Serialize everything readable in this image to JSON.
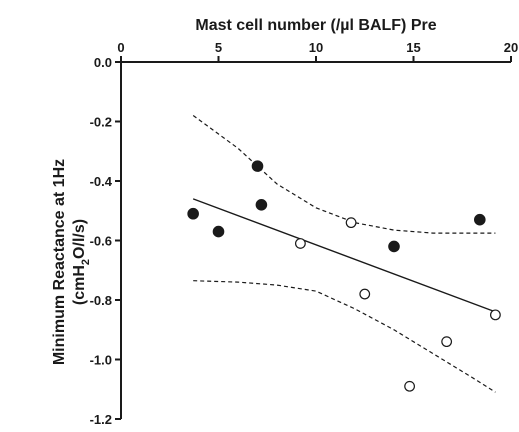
{
  "chart_data": {
    "type": "scatter",
    "title": "",
    "xlabel": "Mast cell number (/µl BALF) Pre",
    "ylabel_line1": "Minimum Reactance at 1Hz",
    "ylabel_line2_parts": [
      "(cmH",
      "2",
      "O/l/s)"
    ],
    "xlim": [
      0,
      20
    ],
    "ylim": [
      -1.2,
      0.0
    ],
    "x_axis_position": "top",
    "grid": false,
    "legend": "none",
    "x_ticks": [
      0,
      5,
      10,
      15,
      20
    ],
    "y_ticks": [
      0.0,
      -0.2,
      -0.4,
      -0.6,
      -0.8,
      -1.0,
      -1.2
    ],
    "x_tick_labels": [
      "0",
      "5",
      "10",
      "15",
      "20"
    ],
    "y_tick_labels": [
      "0.0",
      "-0.2",
      "-0.4",
      "-0.6",
      "-0.8",
      "-1.0",
      "-1.2"
    ],
    "series": [
      {
        "marker": "filled-circle",
        "points": [
          {
            "x": 3.7,
            "y": -0.51
          },
          {
            "x": 5.0,
            "y": -0.57
          },
          {
            "x": 7.0,
            "y": -0.35
          },
          {
            "x": 7.2,
            "y": -0.48
          },
          {
            "x": 14.0,
            "y": -0.62
          },
          {
            "x": 18.4,
            "y": -0.53
          }
        ]
      },
      {
        "marker": "open-circle",
        "points": [
          {
            "x": 9.2,
            "y": -0.61
          },
          {
            "x": 11.8,
            "y": -0.54
          },
          {
            "x": 12.5,
            "y": -0.78
          },
          {
            "x": 14.8,
            "y": -1.09
          },
          {
            "x": 16.7,
            "y": -0.94
          },
          {
            "x": 19.2,
            "y": -0.85
          }
        ]
      }
    ],
    "regression_line": {
      "x": [
        3.7,
        19.2
      ],
      "y": [
        -0.46,
        -0.84
      ]
    },
    "confidence_upper": {
      "x": [
        3.7,
        6.0,
        8.0,
        10.0,
        12.0,
        14.0,
        16.0,
        18.0,
        19.2
      ],
      "y": [
        -0.18,
        -0.29,
        -0.41,
        -0.49,
        -0.54,
        -0.565,
        -0.575,
        -0.575,
        -0.575
      ]
    },
    "confidence_lower": {
      "x": [
        3.7,
        6.0,
        8.0,
        10.0,
        12.0,
        14.0,
        16.0,
        18.0,
        19.2
      ],
      "y": [
        -0.735,
        -0.74,
        -0.75,
        -0.77,
        -0.83,
        -0.9,
        -0.98,
        -1.06,
        -1.11
      ]
    },
    "colors": {
      "ink": "#1a1a1a",
      "background": "#ffffff"
    }
  }
}
